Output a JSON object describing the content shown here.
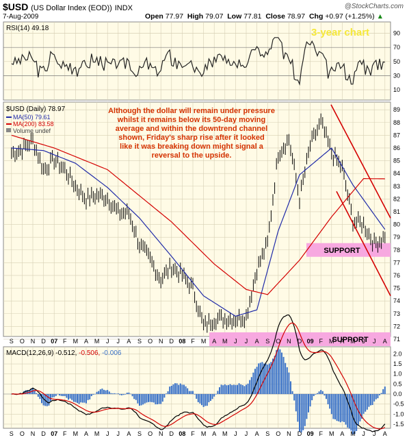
{
  "header": {
    "symbol": "$USD",
    "name": "(US Dollar Index (EOD))",
    "exchange": "INDX",
    "date": "7-Aug-2009",
    "watermark": "@StockCharts.com",
    "open_label": "Open",
    "open": "77.97",
    "high_label": "High",
    "high": "79.07",
    "low_label": "Low",
    "low": "77.81",
    "close_label": "Close",
    "close": "78.97",
    "chg_label": "Chg",
    "chg": "+0.97 (+1.25%)",
    "chg_arrow": "▲"
  },
  "colors": {
    "panel_bg": "#fffbe6",
    "grid": "#d6cfb4",
    "price_bar": "#000000",
    "ma50": "#1f2aa8",
    "ma200": "#d40000",
    "annotation": "#d43200",
    "support_fill": "#f7a8e0",
    "trend_line": "#d40000",
    "macd_hist": "#3a72c8",
    "rsi_title": "#f5e83a"
  },
  "rsi_panel": {
    "label": "RSI(14) 49.18",
    "title": "3-year chart",
    "ticks": [
      "90",
      "70",
      "50",
      "30",
      "10"
    ],
    "levels": [
      70,
      30
    ]
  },
  "price_panel": {
    "legend": {
      "main": "$USD (Daily) 78.97",
      "ma50": "MA(50) 79.61",
      "ma200": "MA(200) 83.58",
      "volume": "Volume undef"
    },
    "annotation": [
      "Although the dollar will remain under pressure",
      "whilst it remains below its 50-day moving",
      "average and within the downtrend channel",
      "shown, Friday's sharp rise after it looked",
      "like it was breaking down might signal a",
      "reversal to the upside."
    ],
    "support_upper": "SUPPORT",
    "support_lower": "SUPPORT",
    "ticks": [
      "89",
      "88",
      "87",
      "86",
      "85",
      "84",
      "83",
      "82",
      "81",
      "80",
      "79",
      "78",
      "77",
      "76",
      "75",
      "74",
      "73",
      "72",
      "71"
    ]
  },
  "macd_panel": {
    "label_main": "MACD(12,26,9) -0.512,",
    "label_signal": "-0.506,",
    "label_hist": "-0.006",
    "ticks": [
      "2.0",
      "1.5",
      "1.0",
      "0.5",
      "0.0",
      "-0.5",
      "-1.0",
      "-1.5"
    ]
  },
  "x_axis_labels": [
    "S",
    "O",
    "N",
    "D",
    "07",
    "F",
    "M",
    "A",
    "M",
    "J",
    "J",
    "A",
    "S",
    "O",
    "N",
    "D",
    "08",
    "F",
    "M",
    "A",
    "M",
    "J",
    "J",
    "A",
    "S",
    "O",
    "N",
    "D",
    "09",
    "F",
    "M",
    "A",
    "M",
    "J",
    "J",
    "A"
  ],
  "chart_data": {
    "type": "line",
    "title": "$USD (US Dollar Index (EOD)) INDX",
    "series": [
      {
        "name": "$USD (Daily)",
        "x": [
          "2006-09",
          "2006-10",
          "2006-11",
          "2006-12",
          "2007-01",
          "2007-02",
          "2007-03",
          "2007-04",
          "2007-05",
          "2007-06",
          "2007-07",
          "2007-08",
          "2007-09",
          "2007-10",
          "2007-11",
          "2007-12",
          "2008-01",
          "2008-02",
          "2008-03",
          "2008-04",
          "2008-05",
          "2008-06",
          "2008-07",
          "2008-08",
          "2008-09",
          "2008-10",
          "2008-11",
          "2008-12",
          "2009-01",
          "2009-02",
          "2009-03",
          "2009-04",
          "2009-05",
          "2009-06",
          "2009-07",
          "2009-08"
        ],
        "values": [
          85.6,
          85.9,
          86.6,
          84.3,
          85.1,
          84.3,
          83.0,
          82.0,
          82.3,
          82.1,
          80.9,
          80.9,
          78.4,
          77.2,
          75.7,
          76.7,
          76.0,
          75.0,
          72.0,
          72.6,
          72.6,
          72.6,
          72.8,
          76.5,
          78.5,
          85.6,
          86.7,
          82.0,
          86.2,
          88.0,
          85.6,
          84.4,
          80.3,
          80.0,
          78.5,
          78.97
        ]
      },
      {
        "name": "MA(50)",
        "x": [
          "2006-09",
          "2006-12",
          "2007-03",
          "2007-06",
          "2007-09",
          "2007-12",
          "2008-03",
          "2008-06",
          "2008-08",
          "2008-10",
          "2008-12",
          "2009-01",
          "2009-03",
          "2009-05",
          "2009-08"
        ],
        "values": [
          86.0,
          85.8,
          84.8,
          82.9,
          80.5,
          77.5,
          74.4,
          72.8,
          73.3,
          79.5,
          83.9,
          84.6,
          86.0,
          83.1,
          79.61
        ]
      },
      {
        "name": "MA(200)",
        "x": [
          "2006-09",
          "2007-01",
          "2007-06",
          "2007-12",
          "2008-04",
          "2008-07",
          "2008-09",
          "2008-12",
          "2009-03",
          "2009-06",
          "2009-08"
        ],
        "values": [
          87.0,
          86.0,
          84.3,
          80.2,
          76.9,
          74.9,
          74.5,
          77.2,
          80.6,
          83.6,
          83.58
        ]
      }
    ],
    "rsi": {
      "name": "RSI(14)",
      "last": 49.18,
      "ylim": [
        10,
        90
      ],
      "levels": [
        70,
        30
      ]
    },
    "macd": {
      "name": "MACD(12,26,9)",
      "macd": -0.512,
      "signal": -0.506,
      "histogram": -0.006,
      "ylim": [
        -1.5,
        2.0
      ]
    },
    "support_levels": [
      78,
      71
    ],
    "ylim": [
      71,
      89
    ],
    "grid": true,
    "legend": "top-left"
  }
}
